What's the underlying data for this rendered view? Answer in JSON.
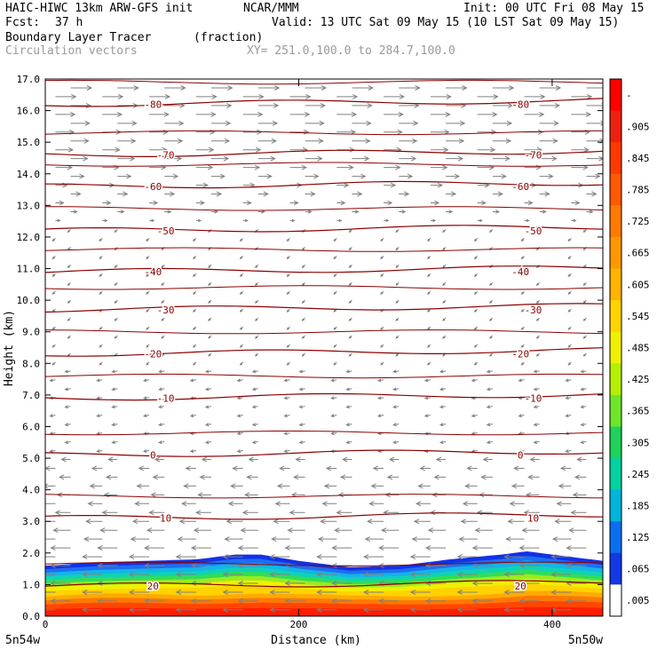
{
  "header": {
    "model": "HAIC-HIWC 13km ARW-GFS init",
    "org": "NCAR/MMM",
    "init": "Init: 00 UTC Fri 08 May 15",
    "fcst_label": "Fcst:",
    "fcst_value": "37 h",
    "valid": "Valid: 13 UTC Sat 09 May 15 (10 LST Sat 09 May 15)",
    "field_name": "Boundary Layer Tracer",
    "field_unit": "(fraction)",
    "vector_name": "Circulation vectors",
    "xy_range": "XY= 251.0,100.0 to 284.7,100.0"
  },
  "colors": {
    "contour": "#8b0000",
    "vector": "#808080",
    "text_gray": "#9a9a9a"
  },
  "chart_data": {
    "type": "heatmap",
    "xlabel": "Distance (km)",
    "ylabel": "Height (km)",
    "xlim": [
      0,
      440
    ],
    "ylim": [
      0,
      17
    ],
    "x_ticks": [
      0,
      200,
      400
    ],
    "y_ticks": [
      "0.0",
      "1.0",
      "2.0",
      "3.0",
      "4.0",
      "5.0",
      "6.0",
      "7.0",
      "8.0",
      "9.0",
      "10.0",
      "11.0",
      "12.0",
      "13.0",
      "14.0",
      "15.0",
      "16.0",
      "17.0"
    ],
    "x_endpoint_labels": {
      "left": "5n54w",
      "right": "5n50w"
    },
    "colorbar": {
      "labels": [
        "-",
        ".905",
        ".845",
        ".785",
        ".725",
        ".665",
        ".605",
        ".545",
        ".485",
        ".425",
        ".365",
        ".305",
        ".245",
        ".185",
        ".125",
        ".065",
        ".005"
      ],
      "colors": [
        "#ff0000",
        "#f02010",
        "#ff3a00",
        "#ff5a00",
        "#ff7a00",
        "#ff9800",
        "#ffb400",
        "#ffd400",
        "#f0f000",
        "#b4f000",
        "#6ee628",
        "#1ed25a",
        "#00d2a0",
        "#00b4dc",
        "#0a6ef0",
        "#1438e6",
        "#ffffff"
      ]
    },
    "tracer_top_km": [
      [
        0,
        1.6
      ],
      [
        40,
        1.7
      ],
      [
        80,
        1.75
      ],
      [
        120,
        1.8
      ],
      [
        150,
        1.95
      ],
      [
        170,
        1.95
      ],
      [
        200,
        1.75
      ],
      [
        240,
        1.55
      ],
      [
        280,
        1.6
      ],
      [
        320,
        1.8
      ],
      [
        360,
        1.95
      ],
      [
        380,
        2.05
      ],
      [
        400,
        1.95
      ],
      [
        440,
        1.75
      ]
    ],
    "temperature_contours_C": [
      {
        "value": 20,
        "height_km": 0.95,
        "label": "20"
      },
      {
        "value": 10,
        "height_km": 3.1,
        "label": "10"
      },
      {
        "value": 0,
        "height_km": 5.1,
        "label": "0"
      },
      {
        "value": -10,
        "height_km": 6.9,
        "label": "-10"
      },
      {
        "value": -20,
        "height_km": 8.3,
        "label": "-20"
      },
      {
        "value": -30,
        "height_km": 9.7,
        "label": "-30"
      },
      {
        "value": -40,
        "height_km": 10.9,
        "label": "-40"
      },
      {
        "value": -50,
        "height_km": 12.2,
        "label": "-50"
      },
      {
        "value": -60,
        "height_km": 13.6,
        "label": "-60"
      },
      {
        "value": -70,
        "height_km": 14.6,
        "label": "-70"
      },
      {
        "value": -80,
        "height_km": 16.2,
        "label": "-80"
      }
    ],
    "grid": false
  }
}
